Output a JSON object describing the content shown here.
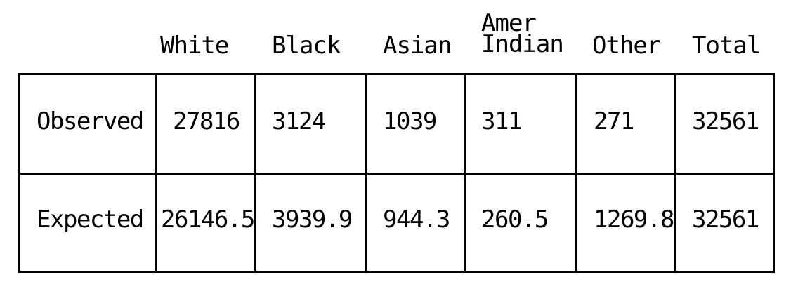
{
  "table": {
    "columns": [
      "White",
      "Black",
      "Asian",
      "Amer\nIndian",
      "Other",
      "Total"
    ],
    "rows": [
      {
        "label": "Observed",
        "values": [
          "27816",
          "3124",
          "1039",
          "311",
          "271",
          "32561"
        ]
      },
      {
        "label": "Expected",
        "values": [
          "26146.5",
          "3939.9",
          "944.3",
          "260.5",
          "1269.8",
          "32561"
        ]
      }
    ]
  }
}
